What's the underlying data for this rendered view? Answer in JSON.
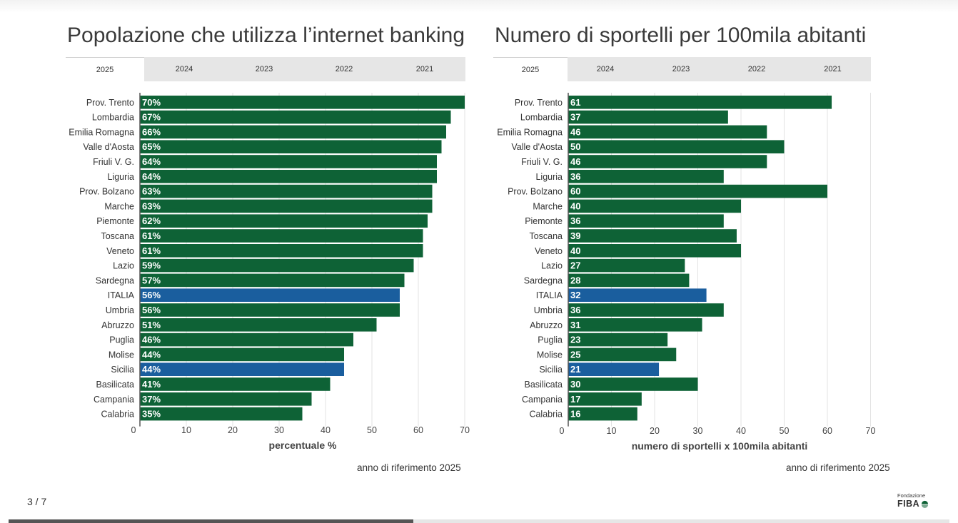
{
  "chart_data": [
    {
      "type": "bar",
      "orientation": "horizontal",
      "title": "Popolazione che utilizza l’internet banking",
      "tabs": [
        "2025",
        "2024",
        "2023",
        "2022",
        "2021"
      ],
      "active_tab": "2025",
      "categories": [
        "Prov. Trento",
        "Lombardia",
        "Emilia Romagna",
        "Valle d'Aosta",
        "Friuli V. G.",
        "Liguria",
        "Prov. Bolzano",
        "Marche",
        "Piemonte",
        "Toscana",
        "Veneto",
        "Lazio",
        "Sardegna",
        "ITALIA",
        "Umbria",
        "Abruzzo",
        "Puglia",
        "Molise",
        "Sicilia",
        "Basilicata",
        "Campania",
        "Calabria"
      ],
      "values": [
        70,
        67,
        66,
        65,
        64,
        64,
        63,
        63,
        62,
        61,
        61,
        59,
        57,
        56,
        56,
        51,
        46,
        44,
        44,
        41,
        37,
        35
      ],
      "value_labels": [
        "70%",
        "67%",
        "66%",
        "65%",
        "64%",
        "64%",
        "63%",
        "63%",
        "62%",
        "61%",
        "61%",
        "59%",
        "57%",
        "56%",
        "56%",
        "51%",
        "46%",
        "44%",
        "44%",
        "41%",
        "37%",
        "35%"
      ],
      "highlight": [
        "ITALIA",
        "Sicilia"
      ],
      "xlabel": "percentuale %",
      "ylabel": "",
      "xlim": [
        0,
        70
      ],
      "xticks": [
        0,
        10,
        20,
        30,
        40,
        50,
        60,
        70
      ],
      "grid": true,
      "note": "anno di riferimento 2025"
    },
    {
      "type": "bar",
      "orientation": "horizontal",
      "title": "Numero di sportelli per 100mila abitanti",
      "tabs": [
        "2025",
        "2024",
        "2023",
        "2022",
        "2021"
      ],
      "active_tab": "2025",
      "categories": [
        "Prov. Trento",
        "Lombardia",
        "Emilia Romagna",
        "Valle d'Aosta",
        "Friuli V. G.",
        "Liguria",
        "Prov. Bolzano",
        "Marche",
        "Piemonte",
        "Toscana",
        "Veneto",
        "Lazio",
        "Sardegna",
        "ITALIA",
        "Umbria",
        "Abruzzo",
        "Puglia",
        "Molise",
        "Sicilia",
        "Basilicata",
        "Campania",
        "Calabria"
      ],
      "values": [
        61,
        37,
        46,
        50,
        46,
        36,
        60,
        40,
        36,
        39,
        40,
        27,
        28,
        32,
        36,
        31,
        23,
        25,
        21,
        30,
        17,
        16
      ],
      "value_labels": [
        "61",
        "37",
        "46",
        "50",
        "46",
        "36",
        "60",
        "40",
        "36",
        "39",
        "40",
        "27",
        "28",
        "32",
        "36",
        "31",
        "23",
        "25",
        "21",
        "30",
        "17",
        "16"
      ],
      "highlight": [
        "ITALIA",
        "Sicilia"
      ],
      "xlabel": "numero di sportelli x 100mila abitanti",
      "ylabel": "",
      "xlim": [
        0,
        70
      ],
      "xticks": [
        0,
        10,
        20,
        30,
        40,
        50,
        60,
        70
      ],
      "grid": true,
      "note": "anno di riferimento 2025"
    }
  ],
  "colors": {
    "bar": "#0e6236",
    "highlight": "#1a5e9e",
    "grid": "#e3e3e3",
    "axis": "#555555"
  },
  "footer": {
    "page_counter": "3 / 7",
    "progress": 0.43,
    "logo_top": "Fondazione",
    "logo_main": "FIBA"
  }
}
